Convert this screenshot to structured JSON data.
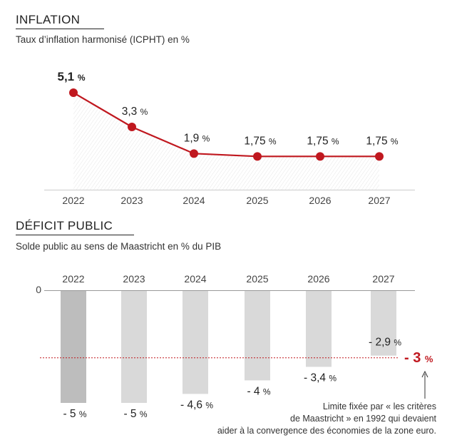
{
  "inflation": {
    "title": "INFLATION",
    "subtitle": "Taux d’inflation harmonisé (ICPHT) en %"
  },
  "deficit": {
    "title": "DÉFICIT PUBLIC",
    "subtitle": "Solde public au sens de Maastricht en % du PIB",
    "zero_label": "0",
    "limit_label": "- 3",
    "limit_unit": "%",
    "note_line1": "Limite fixée par « les critères",
    "note_line2": "de Maastricht » en 1992 qui devaient",
    "note_line3": "aider à la convergence des économies de la zone euro."
  },
  "colors": {
    "accent": "#c0181f",
    "bar_first": "#bdbdbd",
    "bar": "#d9d9d9"
  },
  "chart_data": [
    {
      "type": "line",
      "title": "INFLATION",
      "subtitle": "Taux d’inflation harmonisé (ICPHT) en %",
      "categories": [
        "2022",
        "2023",
        "2024",
        "2025",
        "2026",
        "2027"
      ],
      "values": [
        5.1,
        3.3,
        1.9,
        1.75,
        1.75,
        1.75
      ],
      "data_labels": [
        "5,1",
        "3,3",
        "1,9",
        "1,75",
        "1,75",
        "1,75"
      ],
      "unit": "%",
      "ylim": [
        0,
        5.5
      ]
    },
    {
      "type": "bar",
      "title": "DÉFICIT PUBLIC",
      "subtitle": "Solde public au sens de Maastricht en % du PIB",
      "categories": [
        "2022",
        "2023",
        "2024",
        "2025",
        "2026",
        "2027"
      ],
      "values": [
        -5,
        -5,
        -4.6,
        -4,
        -3.4,
        -2.9
      ],
      "data_labels": [
        "- 5",
        "- 5",
        "- 4,6",
        "- 4",
        "- 3,4",
        "- 2,9"
      ],
      "unit": "%",
      "reference_line": -3,
      "ylim": [
        -5,
        0
      ]
    }
  ]
}
